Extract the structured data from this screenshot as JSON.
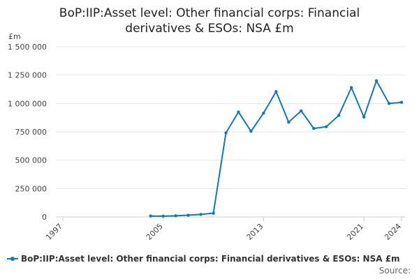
{
  "chart_data": {
    "type": "line",
    "title_lines": [
      "BoP:IIP:Asset level: Other financial corps: Financial",
      "derivatives & ESOs: NSA £m"
    ],
    "ylabel": "£m",
    "xlabel": "",
    "y_ticks": [
      {
        "value": 0,
        "label": "0"
      },
      {
        "value": 250000,
        "label": "250 000"
      },
      {
        "value": 500000,
        "label": "500 000"
      },
      {
        "value": 750000,
        "label": "750 000"
      },
      {
        "value": 1000000,
        "label": "1 000 000"
      },
      {
        "value": 1250000,
        "label": "1 250 000"
      },
      {
        "value": 1500000,
        "label": "1 500 000"
      }
    ],
    "x_ticks": [
      {
        "value": 1997,
        "label": "1997"
      },
      {
        "value": 2005,
        "label": "2005"
      },
      {
        "value": 2013,
        "label": "2013"
      },
      {
        "value": 2021,
        "label": "2021"
      },
      {
        "value": 2024,
        "label": "2024"
      }
    ],
    "ylim": [
      0,
      1500000
    ],
    "xlim": [
      1997,
      2024
    ],
    "grid": true,
    "legend_position": "bottom",
    "series": [
      {
        "name": "BoP:IIP:Asset level: Other financial corps: Financial derivatives & ESOs: NSA £m",
        "color": "#0f7bb5",
        "points": [
          {
            "x": 2004,
            "y": 8000
          },
          {
            "x": 2005,
            "y": 7000
          },
          {
            "x": 2006,
            "y": 10000
          },
          {
            "x": 2007,
            "y": 15000
          },
          {
            "x": 2008,
            "y": 22000
          },
          {
            "x": 2009,
            "y": 33000
          },
          {
            "x": 2010,
            "y": 740000
          },
          {
            "x": 2011,
            "y": 925000
          },
          {
            "x": 2012,
            "y": 755000
          },
          {
            "x": 2013,
            "y": 915000
          },
          {
            "x": 2014,
            "y": 1105000
          },
          {
            "x": 2015,
            "y": 835000
          },
          {
            "x": 2016,
            "y": 935000
          },
          {
            "x": 2017,
            "y": 780000
          },
          {
            "x": 2018,
            "y": 795000
          },
          {
            "x": 2019,
            "y": 895000
          },
          {
            "x": 2020,
            "y": 1140000
          },
          {
            "x": 2021,
            "y": 880000
          },
          {
            "x": 2022,
            "y": 1200000
          },
          {
            "x": 2023,
            "y": 1000000
          },
          {
            "x": 2024,
            "y": 1010000
          }
        ]
      }
    ],
    "source_label": "Source:"
  }
}
